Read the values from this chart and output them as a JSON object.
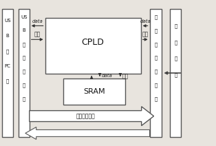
{
  "bg_color": "#e8e4de",
  "box_color": "#ffffff",
  "box_edge": "#555555",
  "arrow_color": "#444444",
  "text_color": "#111111",
  "italic_color": "#222222",
  "left_bar1_label": [
    "US",
    "B",
    "勤",
    "PC",
    "机"
  ],
  "left_bar2_label": [
    "US",
    "B",
    "传",
    "输",
    "控",
    "制",
    "器"
  ],
  "right_bar1_label": [
    "指",
    "纹",
    "识",
    "别",
    "传",
    "感",
    "器"
  ],
  "right_bar2_label": [
    "光",
    "学",
    "镜",
    "头"
  ]
}
